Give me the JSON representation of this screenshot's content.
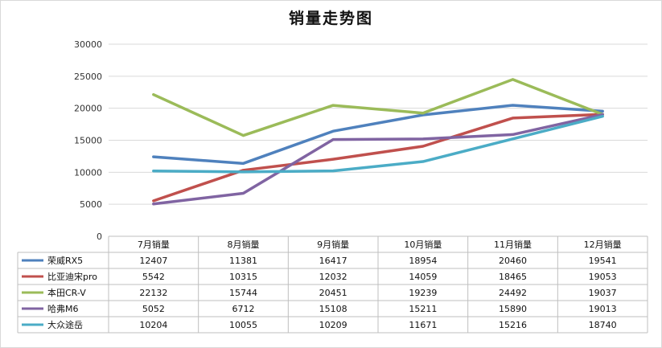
{
  "chart_data": {
    "type": "line",
    "title": "销量走势图",
    "categories": [
      "7月销量",
      "8月销量",
      "9月销量",
      "10月销量",
      "11月销量",
      "12月销量"
    ],
    "ylim": [
      0,
      30000
    ],
    "yticks": [
      0,
      5000,
      10000,
      15000,
      20000,
      25000,
      30000
    ],
    "grid": true,
    "legend": "data-table",
    "series": [
      {
        "name": "荣威RX5",
        "color": "#4f81bd",
        "values": [
          12407,
          11381,
          16417,
          18954,
          20460,
          19541
        ]
      },
      {
        "name": "比亚迪宋pro",
        "color": "#c0504d",
        "values": [
          5542,
          10315,
          12032,
          14059,
          18465,
          19053
        ]
      },
      {
        "name": "本田CR-V",
        "color": "#9bbb59",
        "values": [
          22132,
          15744,
          20451,
          19239,
          24492,
          19037
        ]
      },
      {
        "name": "哈弗M6",
        "color": "#8064a2",
        "values": [
          5052,
          6712,
          15108,
          15211,
          15890,
          19013
        ]
      },
      {
        "name": "大众途岳",
        "color": "#4bacc6",
        "values": [
          10204,
          10055,
          10209,
          11671,
          15216,
          18740
        ]
      }
    ]
  }
}
